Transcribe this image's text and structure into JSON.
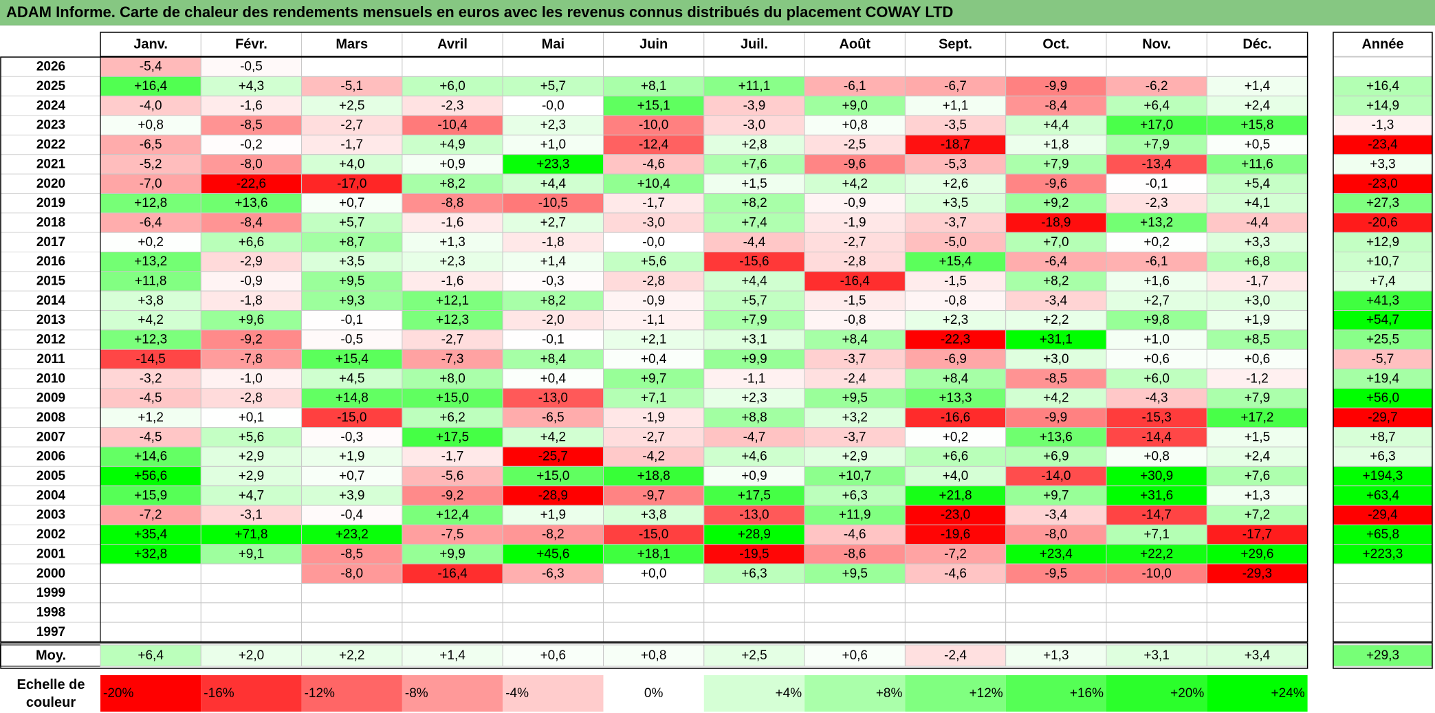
{
  "title": "ADAM Informe. Carte de chaleur des rendements mensuels en euros avec les revenus connus distribués du placement COWAY LTD",
  "chart_data": {
    "type": "heatmap",
    "title": "ADAM Informe. Carte de chaleur des rendements mensuels en euros avec les revenus connus distribués du placement COWAY LTD",
    "columns": [
      "Janv.",
      "Févr.",
      "Mars",
      "Avril",
      "Mai",
      "Juin",
      "Juil.",
      "Août",
      "Sept.",
      "Oct.",
      "Nov.",
      "Déc."
    ],
    "year_column_label": "Année",
    "rows": [
      {
        "year": "2026",
        "values": [
          "-5,4",
          "-0,5",
          "",
          "",
          "",
          "",
          "",
          "",
          "",
          "",
          "",
          ""
        ],
        "annual": ""
      },
      {
        "year": "2025",
        "values": [
          "+16,4",
          "+4,3",
          "-5,1",
          "+6,0",
          "+5,7",
          "+8,1",
          "+11,1",
          "-6,1",
          "-6,7",
          "-9,9",
          "-6,2",
          "+1,4"
        ],
        "annual": "+16,4"
      },
      {
        "year": "2024",
        "values": [
          "-4,0",
          "-1,6",
          "+2,5",
          "-2,3",
          "-0,0",
          "+15,1",
          "-3,9",
          "+9,0",
          "+1,1",
          "-8,4",
          "+6,4",
          "+2,4"
        ],
        "annual": "+14,9"
      },
      {
        "year": "2023",
        "values": [
          "+0,8",
          "-8,5",
          "-2,7",
          "-10,4",
          "+2,3",
          "-10,0",
          "-3,0",
          "+0,8",
          "-3,5",
          "+4,4",
          "+17,0",
          "+15,8"
        ],
        "annual": "-1,3"
      },
      {
        "year": "2022",
        "values": [
          "-6,5",
          "-0,2",
          "-1,7",
          "+4,9",
          "+1,0",
          "-12,4",
          "+2,8",
          "-2,5",
          "-18,7",
          "+1,8",
          "+7,9",
          "+0,5"
        ],
        "annual": "-23,4"
      },
      {
        "year": "2021",
        "values": [
          "-5,2",
          "-8,0",
          "+4,0",
          "+0,9",
          "+23,3",
          "-4,6",
          "+7,6",
          "-9,6",
          "-5,3",
          "+7,9",
          "-13,4",
          "+11,6"
        ],
        "annual": "+3,3"
      },
      {
        "year": "2020",
        "values": [
          "-7,0",
          "-22,6",
          "-17,0",
          "+8,2",
          "+4,4",
          "+10,4",
          "+1,5",
          "+4,2",
          "+2,6",
          "-9,6",
          "-0,1",
          "+5,4"
        ],
        "annual": "-23,0"
      },
      {
        "year": "2019",
        "values": [
          "+12,8",
          "+13,6",
          "+0,7",
          "-8,8",
          "-10,5",
          "-1,7",
          "+8,2",
          "-0,9",
          "+3,5",
          "+9,2",
          "-2,3",
          "+4,1"
        ],
        "annual": "+27,3"
      },
      {
        "year": "2018",
        "values": [
          "-6,4",
          "-8,4",
          "+5,7",
          "-1,6",
          "+2,7",
          "-3,0",
          "+7,4",
          "-1,9",
          "-3,7",
          "-18,9",
          "+13,2",
          "-4,4"
        ],
        "annual": "-20,6"
      },
      {
        "year": "2017",
        "values": [
          "+0,2",
          "+6,6",
          "+8,7",
          "+1,3",
          "-1,8",
          "-0,0",
          "-4,4",
          "-2,7",
          "-5,0",
          "+7,0",
          "+0,2",
          "+3,3"
        ],
        "annual": "+12,9"
      },
      {
        "year": "2016",
        "values": [
          "+13,2",
          "-2,9",
          "+3,5",
          "+2,3",
          "+1,4",
          "+5,6",
          "-15,6",
          "-2,8",
          "+15,4",
          "-6,4",
          "-6,1",
          "+6,8"
        ],
        "annual": "+10,7"
      },
      {
        "year": "2015",
        "values": [
          "+11,8",
          "-0,9",
          "+9,5",
          "-1,6",
          "-0,3",
          "-2,8",
          "+4,4",
          "-16,4",
          "-1,5",
          "+8,2",
          "+1,6",
          "-1,7"
        ],
        "annual": "+7,4"
      },
      {
        "year": "2014",
        "values": [
          "+3,8",
          "-1,8",
          "+9,3",
          "+12,1",
          "+8,2",
          "-0,9",
          "+5,7",
          "-1,5",
          "-0,8",
          "-3,4",
          "+2,7",
          "+3,0"
        ],
        "annual": "+41,3"
      },
      {
        "year": "2013",
        "values": [
          "+4,2",
          "+9,6",
          "-0,1",
          "+12,3",
          "-2,0",
          "-1,1",
          "+7,9",
          "-0,8",
          "+2,3",
          "+2,2",
          "+9,8",
          "+1,9"
        ],
        "annual": "+54,7"
      },
      {
        "year": "2012",
        "values": [
          "+12,3",
          "-9,2",
          "-0,5",
          "-2,7",
          "-0,1",
          "+2,1",
          "+3,1",
          "+8,4",
          "-22,3",
          "+31,1",
          "+1,0",
          "+8,5"
        ],
        "annual": "+25,5"
      },
      {
        "year": "2011",
        "values": [
          "-14,5",
          "-7,8",
          "+15,4",
          "-7,3",
          "+8,4",
          "+0,4",
          "+9,9",
          "-3,7",
          "-6,9",
          "+3,0",
          "+0,6",
          "+0,6"
        ],
        "annual": "-5,7"
      },
      {
        "year": "2010",
        "values": [
          "-3,2",
          "-1,0",
          "+4,5",
          "+8,0",
          "+0,4",
          "+9,7",
          "-1,1",
          "-2,4",
          "+8,4",
          "-8,5",
          "+6,0",
          "-1,2"
        ],
        "annual": "+19,4"
      },
      {
        "year": "2009",
        "values": [
          "-4,5",
          "-2,8",
          "+14,8",
          "+15,0",
          "-13,0",
          "+7,1",
          "+2,3",
          "+9,5",
          "+13,3",
          "+4,2",
          "-4,3",
          "+7,9"
        ],
        "annual": "+56,0"
      },
      {
        "year": "2008",
        "values": [
          "+1,2",
          "+0,1",
          "-15,0",
          "+6,2",
          "-6,5",
          "-1,9",
          "+8,8",
          "+3,2",
          "-16,6",
          "-9,9",
          "-15,3",
          "+17,2"
        ],
        "annual": "-29,7"
      },
      {
        "year": "2007",
        "values": [
          "-4,5",
          "+5,6",
          "-0,3",
          "+17,5",
          "+4,2",
          "-2,7",
          "-4,7",
          "-3,7",
          "+0,2",
          "+13,6",
          "-14,4",
          "+1,5"
        ],
        "annual": "+8,7"
      },
      {
        "year": "2006",
        "values": [
          "+14,6",
          "+2,9",
          "+1,9",
          "-1,7",
          "-25,7",
          "-4,2",
          "+4,6",
          "+2,9",
          "+6,6",
          "+6,9",
          "+0,8",
          "+2,4"
        ],
        "annual": "+6,3"
      },
      {
        "year": "2005",
        "values": [
          "+56,6",
          "+2,9",
          "+0,7",
          "-5,6",
          "+15,0",
          "+18,8",
          "+0,9",
          "+10,7",
          "+4,0",
          "-14,0",
          "+30,9",
          "+7,6"
        ],
        "annual": "+194,3"
      },
      {
        "year": "2004",
        "values": [
          "+15,9",
          "+4,7",
          "+3,9",
          "-9,2",
          "-28,9",
          "-9,7",
          "+17,5",
          "+6,3",
          "+21,8",
          "+9,7",
          "+31,6",
          "+1,3"
        ],
        "annual": "+63,4"
      },
      {
        "year": "2003",
        "values": [
          "-7,2",
          "-3,1",
          "-0,4",
          "+12,4",
          "+1,9",
          "+3,8",
          "-13,0",
          "+11,9",
          "-23,0",
          "-3,4",
          "-14,7",
          "+7,2"
        ],
        "annual": "-29,4"
      },
      {
        "year": "2002",
        "values": [
          "+35,4",
          "+71,8",
          "+23,2",
          "-7,5",
          "-8,2",
          "-15,0",
          "+28,9",
          "-4,6",
          "-19,6",
          "-8,0",
          "+7,1",
          "-17,7"
        ],
        "annual": "+65,8"
      },
      {
        "year": "2001",
        "values": [
          "+32,8",
          "+9,1",
          "-8,5",
          "+9,9",
          "+45,6",
          "+18,1",
          "-19,5",
          "-8,6",
          "-7,2",
          "+23,4",
          "+22,2",
          "+29,6"
        ],
        "annual": "+223,3"
      },
      {
        "year": "2000",
        "values": [
          "",
          "",
          "-8,0",
          "-16,4",
          "-6,3",
          "+0,0",
          "+6,3",
          "+9,5",
          "-4,6",
          "-9,5",
          "-10,0",
          "-29,3"
        ],
        "annual": ""
      },
      {
        "year": "1999",
        "values": [
          "",
          "",
          "",
          "",
          "",
          "",
          "",
          "",
          "",
          "",
          "",
          ""
        ],
        "annual": ""
      },
      {
        "year": "1998",
        "values": [
          "",
          "",
          "",
          "",
          "",
          "",
          "",
          "",
          "",
          "",
          "",
          ""
        ],
        "annual": ""
      },
      {
        "year": "1997",
        "values": [
          "",
          "",
          "",
          "",
          "",
          "",
          "",
          "",
          "",
          "",
          "",
          ""
        ],
        "annual": ""
      }
    ],
    "average": {
      "label": "Moy.",
      "values": [
        "+6,4",
        "+2,0",
        "+2,2",
        "+1,4",
        "+0,6",
        "+0,8",
        "+2,5",
        "+0,6",
        "-2,4",
        "+1,3",
        "+3,1",
        "+3,4"
      ],
      "annual": "+29,3"
    },
    "color_scale": {
      "label_line1": "Echelle de",
      "label_line2": "couleur",
      "stops": [
        "-20%",
        "-16%",
        "-12%",
        "-8%",
        "-4%",
        "0%",
        "+4%",
        "+8%",
        "+12%",
        "+16%",
        "+20%",
        "+24%"
      ]
    },
    "colors": {
      "negative_max": "#ff0000",
      "positive_max": "#00ff00",
      "neutral": "#ffffff",
      "title_bar": "#86c782"
    }
  }
}
